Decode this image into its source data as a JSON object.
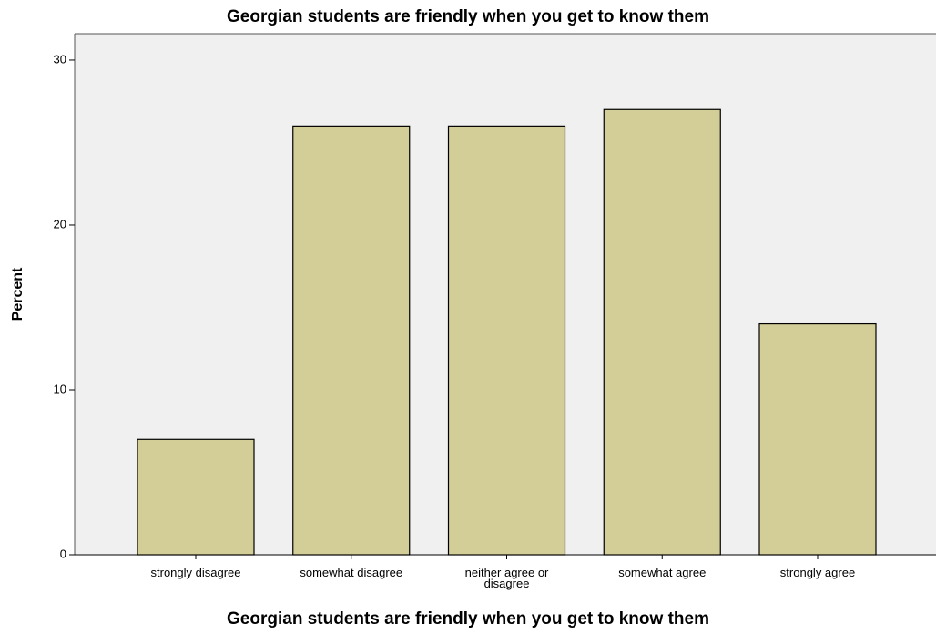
{
  "chart_data": {
    "type": "bar",
    "title": "Georgian students are friendly when you get to know them",
    "x_label": "Georgian students are friendly when you get to know them",
    "y_label": "Percent",
    "categories": [
      "strongly disagree",
      "somewhat disagree",
      "neither agree or disagree",
      "somewhat agree",
      "strongly agree"
    ],
    "values": [
      7,
      26,
      26,
      27,
      14
    ],
    "color": "#d3ce97",
    "ylim": [
      0,
      31.6
    ],
    "yticks": [
      0,
      10,
      20,
      30
    ],
    "grid": false
  }
}
